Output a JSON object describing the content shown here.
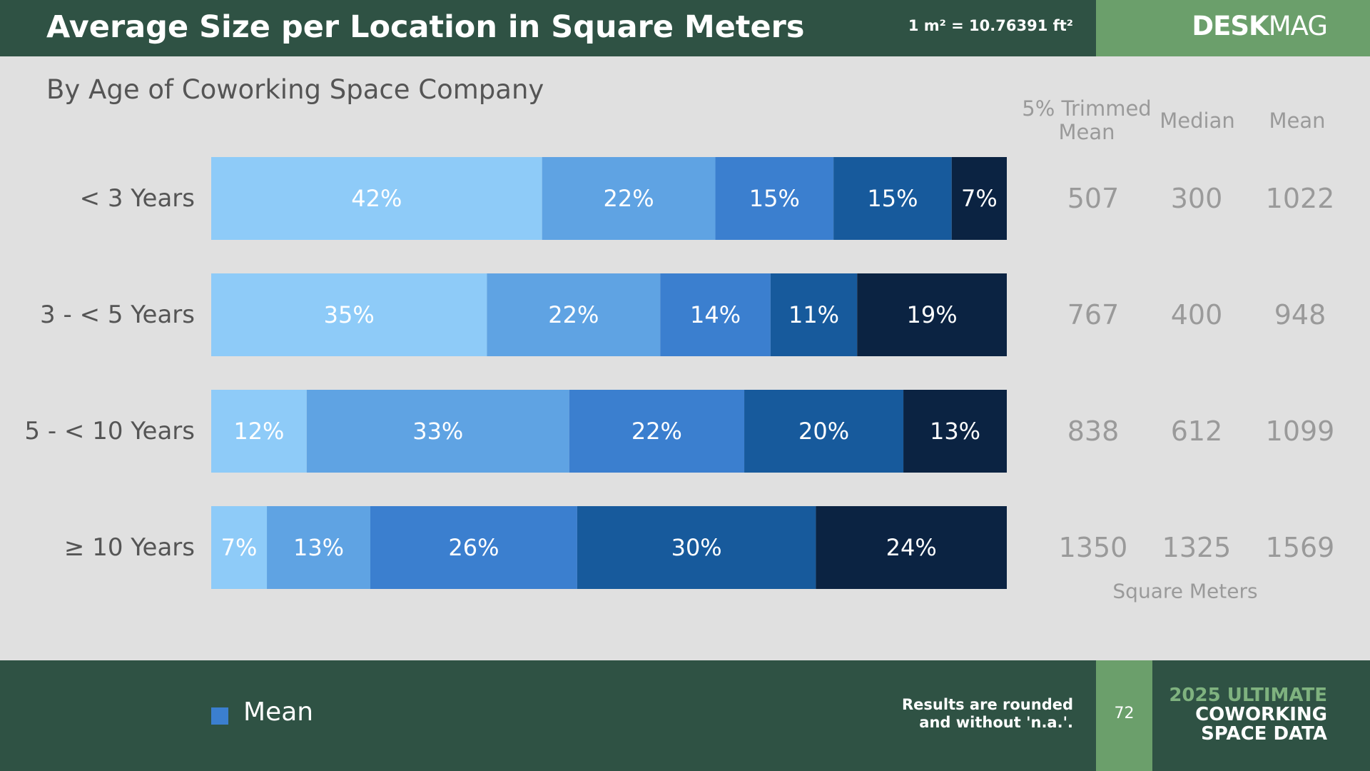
{
  "header": {
    "title": "Average Size per Location in Square Meters",
    "conversion": "1 m² = 10.76391 ft²",
    "brand_bold": "DESK",
    "brand_light": "MAG"
  },
  "subtitle": "By Age of Coworking Space Company",
  "table": {
    "headers": {
      "trimmed_line1": "5% Trimmed",
      "trimmed_line2": "Mean",
      "median": "Median",
      "mean": "Mean"
    },
    "unit_label": "Square Meters"
  },
  "colors": {
    "segments": [
      "#8ecbf8",
      "#5fa3e3",
      "#3b7fcf",
      "#175a9c",
      "#0b2342"
    ],
    "stat_text": "#9a9a9a",
    "header_bg": "#2f5244",
    "accent_green": "#6b9f6b"
  },
  "chart_data": {
    "type": "bar",
    "orientation": "horizontal",
    "stacked": true,
    "categories": [
      "< 3 Years",
      "3 - < 5 Years",
      "5 - < 10 Years",
      "≥ 10 Years"
    ],
    "rows": [
      {
        "segments": [
          42,
          22,
          15,
          15,
          7
        ],
        "labels": [
          "42%",
          "22%",
          "15%",
          "15%",
          "7%"
        ],
        "trimmed_mean": "507",
        "median": "300",
        "mean": "1022"
      },
      {
        "segments": [
          35,
          22,
          14,
          11,
          19
        ],
        "labels": [
          "35%",
          "22%",
          "14%",
          "11%",
          "19%"
        ],
        "trimmed_mean": "767",
        "median": "400",
        "mean": "948"
      },
      {
        "segments": [
          12,
          33,
          22,
          20,
          13
        ],
        "labels": [
          "12%",
          "33%",
          "22%",
          "20%",
          "13%"
        ],
        "trimmed_mean": "838",
        "median": "612",
        "mean": "1099"
      },
      {
        "segments": [
          7,
          13,
          26,
          30,
          24
        ],
        "labels": [
          "7%",
          "13%",
          "26%",
          "30%",
          "24%"
        ],
        "trimmed_mean": "1350",
        "median": "1325",
        "mean": "1569"
      }
    ],
    "xlim": [
      0,
      100
    ],
    "legend": {
      "label": "Mean",
      "placement": "bottom-left"
    }
  },
  "footer": {
    "note_line1": "Results are rounded",
    "note_line2": "and without 'n.a.'.",
    "page_number": "72",
    "report_line1": "2025 ULTIMATE",
    "report_line2": "COWORKING",
    "report_line3": "SPACE DATA"
  }
}
